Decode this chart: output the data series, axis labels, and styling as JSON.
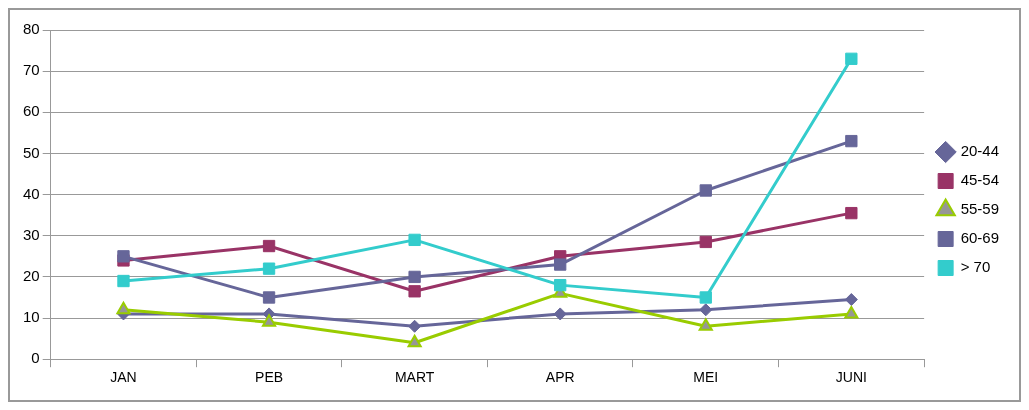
{
  "chart_data": {
    "type": "line",
    "categories": [
      "JAN",
      "PEB",
      "MART",
      "APR",
      "MEI",
      "JUNI"
    ],
    "series": [
      {
        "name": "20-44",
        "color": "#666699",
        "marker": "diamond",
        "values": [
          11,
          11,
          8,
          11,
          12,
          14.5
        ]
      },
      {
        "name": "45-54",
        "color": "#993366",
        "marker": "square",
        "values": [
          24,
          27.5,
          16.5,
          25,
          28.5,
          35.5
        ]
      },
      {
        "name": "55-59",
        "color": "#99cc00",
        "marker": "triangle",
        "values": [
          12,
          9,
          4,
          16,
          8,
          11
        ]
      },
      {
        "name": "60-69",
        "color": "#666699",
        "marker": "square",
        "values": [
          25,
          15,
          20,
          23,
          41,
          53
        ]
      },
      {
        "name": "> 70",
        "color": "#33cccc",
        "marker": "square",
        "values": [
          19,
          22,
          29,
          18,
          15,
          73
        ]
      }
    ],
    "ylim": [
      0,
      80
    ],
    "yticks": [
      0,
      10,
      20,
      30,
      40,
      50,
      60,
      70,
      80
    ],
    "grid": "y",
    "legend": "right",
    "line_style": "solid"
  }
}
